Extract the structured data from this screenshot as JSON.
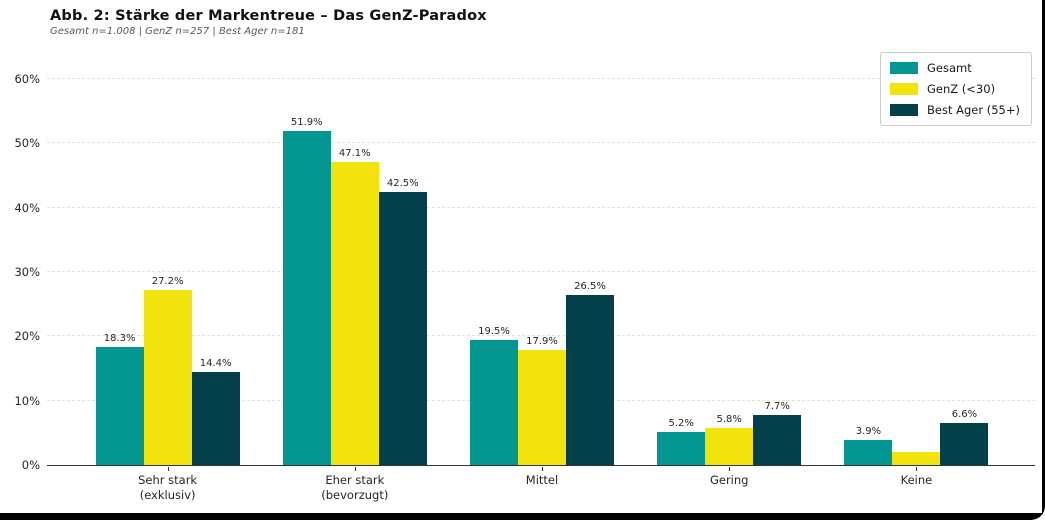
{
  "header": {
    "title": "Abb. 2: Stärke der Markentreue – Das GenZ-Paradox",
    "subtitle": "Gesamt n=1.008 | GenZ n=257 | Best Ager n=181"
  },
  "chart_data": {
    "type": "bar",
    "title": "Abb. 2: Stärke der Markentreue – Das GenZ-Paradox",
    "subtitle": "Gesamt n=1.008 | GenZ n=257 | Best Ager n=181",
    "categories": [
      "Sehr stark\n(exklusiv)",
      "Eher stark\n(bevorzugt)",
      "Mittel",
      "Gering",
      "Keine"
    ],
    "series": [
      {
        "name": "Gesamt",
        "color": "#049690",
        "values": [
          18.3,
          51.9,
          19.5,
          5.2,
          3.9
        ],
        "labels": [
          "18.3%",
          "51.9%",
          "19.5%",
          "5.2%",
          "3.9%"
        ]
      },
      {
        "name": "GenZ (<30)",
        "color": "#F3E30D",
        "values": [
          27.2,
          47.1,
          17.9,
          5.8,
          2.0
        ],
        "labels": [
          "27.2%",
          "47.1%",
          "17.9%",
          "5.8%",
          ""
        ]
      },
      {
        "name": "Best Ager (55+)",
        "color": "#04404C",
        "values": [
          14.4,
          42.5,
          26.5,
          7.7,
          6.6
        ],
        "labels": [
          "14.4%",
          "42.5%",
          "26.5%",
          "7.7%",
          "6.6%"
        ]
      }
    ],
    "yticks": [
      {
        "value": 0,
        "label": "0%"
      },
      {
        "value": 10,
        "label": "10%"
      },
      {
        "value": 20,
        "label": "20%"
      },
      {
        "value": 30,
        "label": "30%"
      },
      {
        "value": 40,
        "label": "40%"
      },
      {
        "value": 50,
        "label": "50%"
      },
      {
        "value": 60,
        "label": "60%"
      }
    ],
    "ylim": [
      0,
      63
    ],
    "grid": "horizontal-dashed",
    "legend_position": "upper-right",
    "axis_color": "#333333",
    "grid_color": "#e3e3e3"
  }
}
